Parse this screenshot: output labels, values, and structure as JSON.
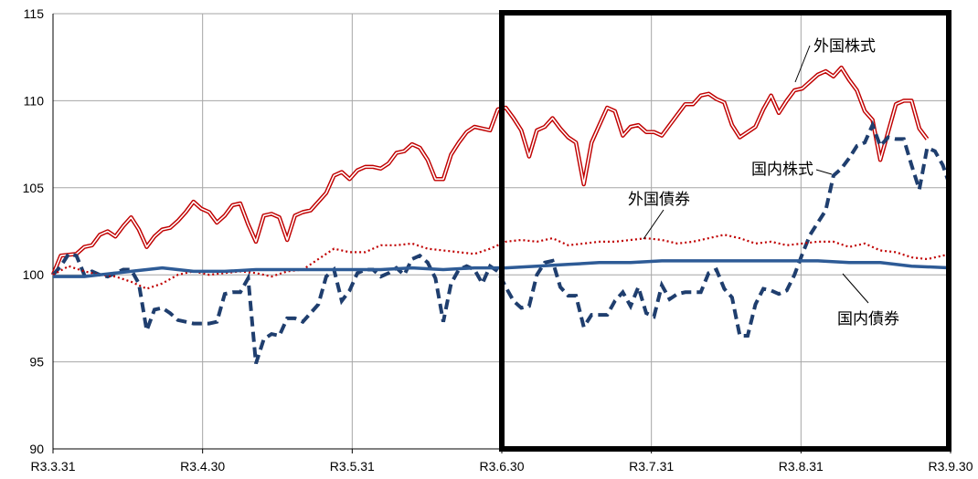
{
  "chart_data": {
    "type": "line",
    "title": "",
    "xlabel": "",
    "ylabel": "",
    "ylim": [
      90,
      115
    ],
    "yticks": [
      "90",
      "95",
      "100",
      "105",
      "110",
      "115"
    ],
    "xticks": [
      "R3.3.31",
      "R3.4.30",
      "R3.5.31",
      "R3.6.30",
      "R3.7.31",
      "R3.8.31",
      "R3.9.30"
    ],
    "grid": true,
    "legend": "none",
    "highlight_range": [
      "R3.6.30",
      "R3.9.30"
    ],
    "series": [
      {
        "name": "外国株式",
        "color": "#c00000",
        "style": "double",
        "points": [
          [
            0,
            100.0
          ],
          [
            1,
            101.1
          ],
          [
            3,
            101.2
          ],
          [
            4,
            101.6
          ],
          [
            5,
            101.7
          ],
          [
            6,
            102.3
          ],
          [
            7,
            102.5
          ],
          [
            8,
            102.2
          ],
          [
            9,
            102.8
          ],
          [
            10,
            103.3
          ],
          [
            11,
            102.6
          ],
          [
            12,
            101.6
          ],
          [
            13,
            102.2
          ],
          [
            14,
            102.6
          ],
          [
            15,
            102.7
          ],
          [
            16,
            103.1
          ],
          [
            17,
            103.6
          ],
          [
            18,
            104.2
          ],
          [
            19,
            103.8
          ],
          [
            20,
            103.6
          ],
          [
            21,
            103.0
          ],
          [
            22,
            103.4
          ],
          [
            23,
            104.0
          ],
          [
            24,
            104.1
          ],
          [
            25,
            102.9
          ],
          [
            26,
            101.9
          ],
          [
            27,
            103.4
          ],
          [
            28,
            103.5
          ],
          [
            29,
            103.3
          ],
          [
            30,
            102.0
          ],
          [
            31,
            103.4
          ],
          [
            32,
            103.6
          ],
          [
            33,
            103.7
          ],
          [
            34,
            104.2
          ],
          [
            35,
            104.7
          ],
          [
            36,
            105.7
          ],
          [
            37,
            105.9
          ],
          [
            38,
            105.5
          ],
          [
            39,
            106.0
          ],
          [
            40,
            106.2
          ],
          [
            41,
            106.2
          ],
          [
            42,
            106.1
          ],
          [
            43,
            106.4
          ],
          [
            44,
            107.0
          ],
          [
            45,
            107.1
          ],
          [
            46,
            107.5
          ],
          [
            47,
            107.3
          ],
          [
            48,
            106.6
          ],
          [
            49,
            105.5
          ],
          [
            50,
            105.5
          ],
          [
            51,
            106.9
          ],
          [
            52,
            107.6
          ],
          [
            53,
            108.2
          ],
          [
            54,
            108.5
          ],
          [
            55,
            108.4
          ],
          [
            56,
            108.3
          ],
          [
            57,
            109.5
          ],
          [
            58,
            109.6
          ],
          [
            59,
            109.0
          ],
          [
            60,
            108.3
          ],
          [
            61,
            106.8
          ],
          [
            62,
            108.3
          ],
          [
            63,
            108.5
          ],
          [
            64,
            109.0
          ],
          [
            65,
            108.4
          ],
          [
            66,
            107.9
          ],
          [
            67,
            107.6
          ],
          [
            68,
            105.2
          ],
          [
            69,
            107.6
          ],
          [
            70,
            108.6
          ],
          [
            71,
            109.6
          ],
          [
            72,
            109.4
          ],
          [
            73,
            108.0
          ],
          [
            74,
            108.5
          ],
          [
            75,
            108.6
          ],
          [
            76,
            108.2
          ],
          [
            77,
            108.2
          ],
          [
            78,
            108.0
          ],
          [
            79,
            108.6
          ],
          [
            80,
            109.2
          ],
          [
            81,
            109.8
          ],
          [
            82,
            109.8
          ],
          [
            83,
            110.3
          ],
          [
            84,
            110.4
          ],
          [
            85,
            110.1
          ],
          [
            86,
            109.9
          ],
          [
            87,
            108.6
          ],
          [
            88,
            107.9
          ],
          [
            89,
            108.2
          ],
          [
            90,
            108.5
          ],
          [
            91,
            109.5
          ],
          [
            92,
            110.3
          ],
          [
            93,
            109.3
          ],
          [
            94,
            110.0
          ],
          [
            95,
            110.6
          ],
          [
            96,
            110.7
          ],
          [
            97,
            111.1
          ],
          [
            98,
            111.5
          ],
          [
            99,
            111.7
          ],
          [
            100,
            111.4
          ],
          [
            101,
            111.9
          ],
          [
            102,
            111.2
          ],
          [
            103,
            110.6
          ],
          [
            104,
            109.4
          ],
          [
            105,
            108.9
          ],
          [
            106,
            106.6
          ],
          [
            107,
            108.2
          ],
          [
            108,
            109.8
          ],
          [
            109,
            110.0
          ],
          [
            110,
            110.0
          ],
          [
            111,
            108.4
          ],
          [
            112,
            107.8
          ]
        ]
      },
      {
        "name": "国内株式",
        "color": "#1f3e6e",
        "style": "dashed",
        "points": [
          [
            0,
            100.0
          ],
          [
            1,
            100.5
          ],
          [
            2,
            101.2
          ],
          [
            3,
            101.1
          ],
          [
            4,
            100.0
          ],
          [
            5,
            100.2
          ],
          [
            6,
            100.0
          ],
          [
            7,
            99.9
          ],
          [
            8,
            100.1
          ],
          [
            9,
            100.3
          ],
          [
            10,
            100.3
          ],
          [
            11,
            99.5
          ],
          [
            12,
            96.8
          ],
          [
            13,
            98.0
          ],
          [
            14,
            98.1
          ],
          [
            15,
            97.8
          ],
          [
            16,
            97.4
          ],
          [
            17,
            97.3
          ],
          [
            18,
            97.2
          ],
          [
            19,
            97.2
          ],
          [
            20,
            97.2
          ],
          [
            21,
            97.3
          ],
          [
            22,
            98.9
          ],
          [
            23,
            99.0
          ],
          [
            24,
            99.0
          ],
          [
            25,
            99.8
          ],
          [
            26,
            94.9
          ],
          [
            27,
            96.3
          ],
          [
            28,
            96.6
          ],
          [
            29,
            96.5
          ],
          [
            30,
            97.5
          ],
          [
            31,
            97.5
          ],
          [
            32,
            97.3
          ],
          [
            33,
            97.8
          ],
          [
            34,
            98.3
          ],
          [
            35,
            99.9
          ],
          [
            36,
            100.3
          ],
          [
            37,
            98.5
          ],
          [
            38,
            99.1
          ],
          [
            39,
            100.1
          ],
          [
            40,
            100.3
          ],
          [
            41,
            100.3
          ],
          [
            42,
            99.9
          ],
          [
            43,
            100.1
          ],
          [
            44,
            100.4
          ],
          [
            45,
            100.0
          ],
          [
            46,
            100.9
          ],
          [
            47,
            101.1
          ],
          [
            48,
            100.7
          ],
          [
            49,
            99.8
          ],
          [
            50,
            97.3
          ],
          [
            51,
            99.5
          ],
          [
            52,
            100.3
          ],
          [
            53,
            100.5
          ],
          [
            54,
            100.3
          ],
          [
            55,
            99.5
          ],
          [
            56,
            100.5
          ],
          [
            57,
            100.2
          ],
          [
            58,
            99.3
          ],
          [
            59,
            98.5
          ],
          [
            60,
            98.1
          ],
          [
            61,
            98.2
          ],
          [
            62,
            100.0
          ],
          [
            63,
            100.7
          ],
          [
            64,
            100.8
          ],
          [
            65,
            99.3
          ],
          [
            66,
            98.8
          ],
          [
            67,
            98.8
          ],
          [
            68,
            97.0
          ],
          [
            69,
            97.7
          ],
          [
            70,
            97.7
          ],
          [
            71,
            97.7
          ],
          [
            72,
            98.5
          ],
          [
            73,
            99.0
          ],
          [
            74,
            98.2
          ],
          [
            75,
            99.3
          ],
          [
            76,
            97.8
          ],
          [
            77,
            97.6
          ],
          [
            78,
            99.4
          ],
          [
            79,
            98.6
          ],
          [
            80,
            98.9
          ],
          [
            81,
            99.0
          ],
          [
            82,
            99.0
          ],
          [
            83,
            99.0
          ],
          [
            84,
            100.1
          ],
          [
            85,
            100.3
          ],
          [
            86,
            99.2
          ],
          [
            87,
            98.7
          ],
          [
            88,
            96.5
          ],
          [
            89,
            96.5
          ],
          [
            90,
            98.3
          ],
          [
            91,
            99.2
          ],
          [
            92,
            99.1
          ],
          [
            93,
            98.9
          ],
          [
            94,
            99.1
          ],
          [
            95,
            100.0
          ],
          [
            96,
            101.2
          ],
          [
            97,
            102.3
          ],
          [
            98,
            103.0
          ],
          [
            99,
            103.7
          ],
          [
            100,
            105.7
          ],
          [
            101,
            106.1
          ],
          [
            102,
            106.7
          ],
          [
            103,
            107.4
          ],
          [
            104,
            107.6
          ],
          [
            105,
            108.6
          ],
          [
            106,
            107.4
          ],
          [
            107,
            107.9
          ],
          [
            108,
            107.8
          ],
          [
            109,
            107.8
          ],
          [
            110,
            106.3
          ],
          [
            111,
            104.9
          ],
          [
            112,
            107.3
          ],
          [
            113,
            107.1
          ],
          [
            114,
            106.3
          ],
          [
            115,
            105.0
          ]
        ]
      },
      {
        "name": "外国債券",
        "color": "#c00000",
        "style": "dotted",
        "points": [
          [
            0,
            100.0
          ],
          [
            2,
            100.5
          ],
          [
            4,
            100.2
          ],
          [
            6,
            100.0
          ],
          [
            8,
            99.9
          ],
          [
            10,
            99.6
          ],
          [
            12,
            99.2
          ],
          [
            14,
            99.5
          ],
          [
            16,
            100.0
          ],
          [
            18,
            100.2
          ],
          [
            20,
            100.0
          ],
          [
            22,
            100.1
          ],
          [
            24,
            100.2
          ],
          [
            26,
            100.1
          ],
          [
            28,
            99.9
          ],
          [
            30,
            100.2
          ],
          [
            32,
            100.3
          ],
          [
            34,
            100.9
          ],
          [
            36,
            101.5
          ],
          [
            38,
            101.3
          ],
          [
            40,
            101.3
          ],
          [
            42,
            101.7
          ],
          [
            44,
            101.7
          ],
          [
            46,
            101.8
          ],
          [
            48,
            101.5
          ],
          [
            50,
            101.4
          ],
          [
            52,
            101.3
          ],
          [
            54,
            101.2
          ],
          [
            56,
            101.5
          ],
          [
            58,
            101.9
          ],
          [
            60,
            102.0
          ],
          [
            62,
            101.9
          ],
          [
            64,
            102.1
          ],
          [
            66,
            101.7
          ],
          [
            68,
            101.8
          ],
          [
            70,
            101.9
          ],
          [
            72,
            101.9
          ],
          [
            74,
            102.0
          ],
          [
            76,
            102.1
          ],
          [
            78,
            102.0
          ],
          [
            80,
            101.8
          ],
          [
            82,
            101.9
          ],
          [
            84,
            102.1
          ],
          [
            86,
            102.3
          ],
          [
            88,
            102.1
          ],
          [
            90,
            101.8
          ],
          [
            92,
            101.9
          ],
          [
            94,
            101.7
          ],
          [
            96,
            101.8
          ],
          [
            98,
            101.9
          ],
          [
            100,
            101.9
          ],
          [
            102,
            101.6
          ],
          [
            104,
            101.8
          ],
          [
            106,
            101.4
          ],
          [
            108,
            101.3
          ],
          [
            110,
            101.0
          ],
          [
            112,
            100.9
          ],
          [
            114,
            101.1
          ],
          [
            115,
            101.2
          ]
        ]
      },
      {
        "name": "国内債券",
        "color": "#2e5b96",
        "style": "solid",
        "points": [
          [
            0,
            99.9
          ],
          [
            4,
            99.9
          ],
          [
            8,
            100.1
          ],
          [
            10,
            100.2
          ],
          [
            14,
            100.4
          ],
          [
            18,
            100.2
          ],
          [
            22,
            100.2
          ],
          [
            26,
            100.3
          ],
          [
            30,
            100.3
          ],
          [
            34,
            100.3
          ],
          [
            38,
            100.3
          ],
          [
            42,
            100.3
          ],
          [
            46,
            100.4
          ],
          [
            50,
            100.3
          ],
          [
            54,
            100.4
          ],
          [
            58,
            100.4
          ],
          [
            62,
            100.5
          ],
          [
            66,
            100.6
          ],
          [
            70,
            100.7
          ],
          [
            74,
            100.7
          ],
          [
            78,
            100.8
          ],
          [
            82,
            100.8
          ],
          [
            86,
            100.8
          ],
          [
            90,
            100.8
          ],
          [
            94,
            100.8
          ],
          [
            98,
            100.8
          ],
          [
            102,
            100.7
          ],
          [
            106,
            100.7
          ],
          [
            110,
            100.5
          ],
          [
            115,
            100.4
          ]
        ]
      }
    ],
    "annotations": [
      {
        "text": "外国株式"
      },
      {
        "text": "国内株式"
      },
      {
        "text": "外国債券"
      },
      {
        "text": "国内債券"
      }
    ]
  }
}
